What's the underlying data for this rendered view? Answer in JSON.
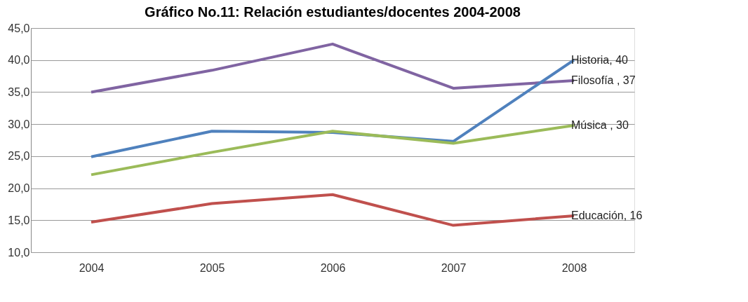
{
  "chart_data": {
    "type": "line",
    "title": "Gráfico No.11: Relación estudiantes/docentes  2004-2008",
    "categories": [
      "2004",
      "2005",
      "2006",
      "2007",
      "2008"
    ],
    "series": [
      {
        "color": "#8064a2",
        "values": [
          35.0,
          38.4,
          42.5,
          35.6,
          36.8
        ]
      },
      {
        "color": "#4f81bd",
        "values": [
          24.9,
          28.9,
          28.7,
          27.3,
          40.0
        ]
      },
      {
        "color": "#9bbb59",
        "values": [
          22.1,
          25.6,
          28.9,
          27.0,
          29.8
        ]
      },
      {
        "color": "#c0504d",
        "values": [
          14.7,
          17.6,
          19.0,
          14.2,
          15.7
        ]
      }
    ],
    "ylim": [
      10,
      45
    ],
    "yticks": [
      {
        "value": 10,
        "label": "10,0"
      },
      {
        "value": 15,
        "label": "15,0"
      },
      {
        "value": 20,
        "label": "20,0"
      },
      {
        "value": 25,
        "label": "25,0"
      },
      {
        "value": 30,
        "label": "30,0"
      },
      {
        "value": 35,
        "label": "35,0"
      },
      {
        "value": 40,
        "label": "40,0"
      },
      {
        "value": 45,
        "label": "45,0"
      }
    ],
    "grid": "y",
    "legend": false,
    "marker": "none",
    "line_style": "solid",
    "annotations": [
      {
        "text": "Historia, 40",
        "x": "2008",
        "y": 40.0
      },
      {
        "text": "Filosofía , 37",
        "x": "2008",
        "y": 36.8
      },
      {
        "text": "Música , 30",
        "x": "2008",
        "y": 29.8
      },
      {
        "text": "Educación, 16",
        "x": "2008",
        "y": 15.7
      }
    ]
  }
}
